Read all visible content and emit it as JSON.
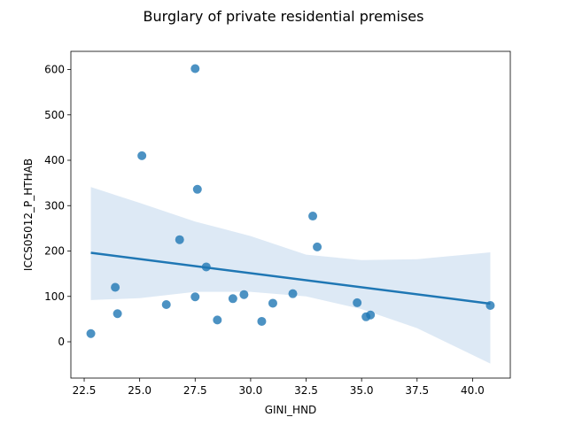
{
  "chart_data": {
    "type": "scatter",
    "title": "Burglary of private residential premises",
    "xlabel": "GINI_HND",
    "ylabel": "ICCS05012_P_HTHAB",
    "xlim": [
      21.9,
      41.7
    ],
    "ylim": [
      -80,
      640
    ],
    "x_ticks": [
      22.5,
      25.0,
      27.5,
      30.0,
      32.5,
      35.0,
      37.5,
      40.0
    ],
    "x_tick_labels": [
      "22.5",
      "25.0",
      "27.5",
      "30.0",
      "32.5",
      "35.0",
      "37.5",
      "40.0"
    ],
    "y_ticks": [
      0,
      100,
      200,
      300,
      400,
      500,
      600
    ],
    "y_tick_labels": [
      "0",
      "100",
      "200",
      "300",
      "400",
      "500",
      "600"
    ],
    "grid": false,
    "point_color": "#1f77b4",
    "line_color": "#1f77b4",
    "band_color": "#c6dbef",
    "points": [
      {
        "x": 22.8,
        "y": 18
      },
      {
        "x": 23.9,
        "y": 120
      },
      {
        "x": 24.0,
        "y": 62
      },
      {
        "x": 25.1,
        "y": 410
      },
      {
        "x": 26.2,
        "y": 82
      },
      {
        "x": 26.8,
        "y": 225
      },
      {
        "x": 27.5,
        "y": 602
      },
      {
        "x": 27.5,
        "y": 99
      },
      {
        "x": 27.6,
        "y": 336
      },
      {
        "x": 28.0,
        "y": 165
      },
      {
        "x": 28.5,
        "y": 48
      },
      {
        "x": 29.2,
        "y": 95
      },
      {
        "x": 29.7,
        "y": 104
      },
      {
        "x": 30.5,
        "y": 45
      },
      {
        "x": 31.0,
        "y": 85
      },
      {
        "x": 31.9,
        "y": 106
      },
      {
        "x": 32.8,
        "y": 277
      },
      {
        "x": 33.0,
        "y": 209
      },
      {
        "x": 34.8,
        "y": 86
      },
      {
        "x": 35.2,
        "y": 55
      },
      {
        "x": 35.4,
        "y": 59
      },
      {
        "x": 40.8,
        "y": 80
      }
    ],
    "regression": {
      "x": [
        22.8,
        40.8
      ],
      "y": [
        196,
        84
      ]
    },
    "confidence_band": {
      "x": [
        22.8,
        25.0,
        27.5,
        30.0,
        32.5,
        35.0,
        37.5,
        40.8
      ],
      "upper": [
        341,
        306,
        265,
        233,
        192,
        180,
        182,
        197
      ],
      "lower": [
        92,
        96,
        110,
        110,
        100,
        72,
        30,
        -48
      ]
    }
  }
}
